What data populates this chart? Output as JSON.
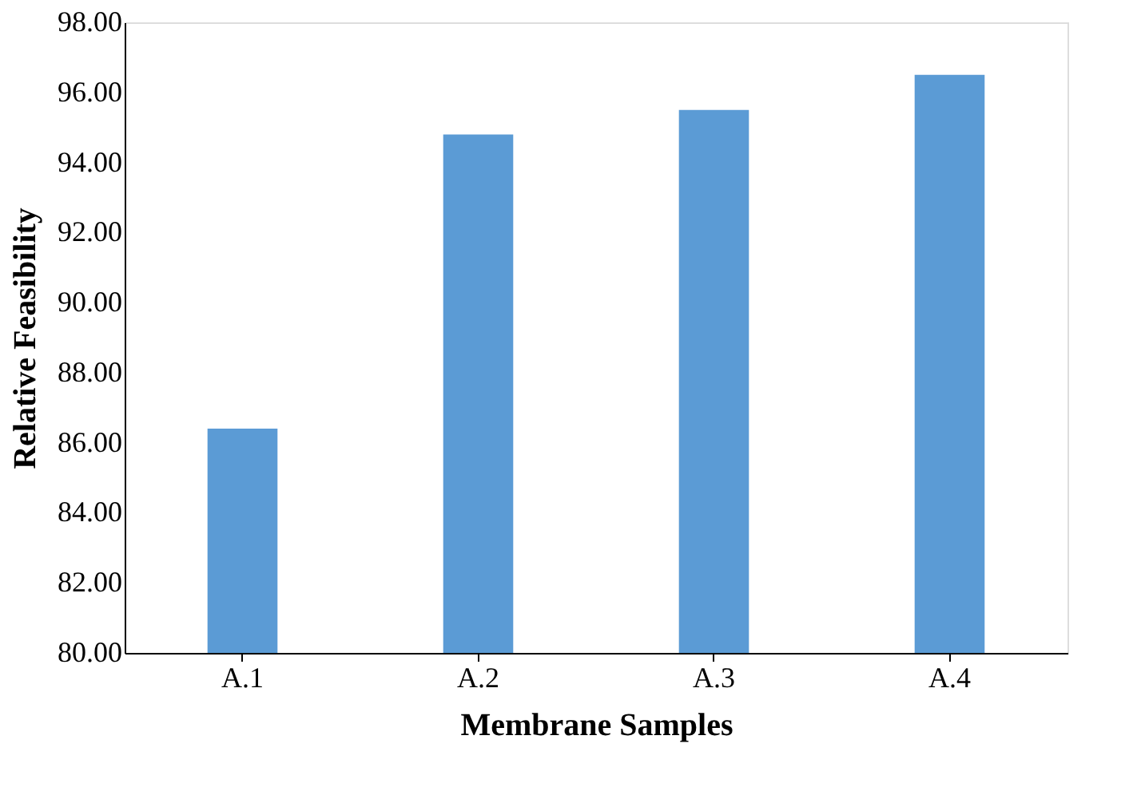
{
  "chart_data": {
    "type": "bar",
    "xlabel": "Membrane Samples",
    "ylabel": "Relative Feasibility",
    "categories": [
      "A.1",
      "A.2",
      "A.3",
      "A.4"
    ],
    "values": [
      86.4,
      94.8,
      95.5,
      96.5
    ],
    "color": "#5b9bd5",
    "ylim": [
      80,
      98
    ],
    "yticks": [
      {
        "value": 80,
        "label": "80.00"
      },
      {
        "value": 82,
        "label": "82.00"
      },
      {
        "value": 84,
        "label": "84.00"
      },
      {
        "value": 86,
        "label": "86.00"
      },
      {
        "value": 88,
        "label": "88.00"
      },
      {
        "value": 90,
        "label": "90.00"
      },
      {
        "value": 92,
        "label": "92.00"
      },
      {
        "value": 94,
        "label": "94.00"
      },
      {
        "value": 96,
        "label": "96.00"
      },
      {
        "value": 98,
        "label": "98.00"
      }
    ],
    "grid": false
  }
}
